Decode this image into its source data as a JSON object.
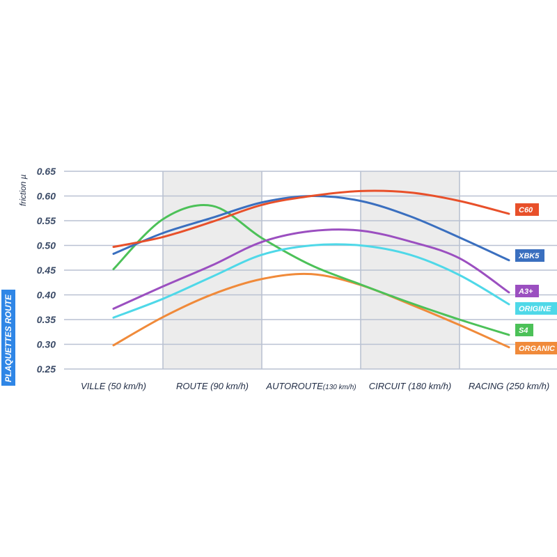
{
  "chart_data": {
    "type": "line",
    "ylabel": "friction µ",
    "side_label": "PLAQUETTES ROUTE",
    "categories": [
      "VILLE (50 km/h)",
      "ROUTE (90 km/h)",
      "AUTOROUTE",
      "CIRCUIT (180 km/h)",
      "RACING (250 km/h)"
    ],
    "category_suffix": {
      "2": "(130 km/h)"
    },
    "ylim": [
      0.25,
      0.65
    ],
    "yticks": [
      "0.65",
      "0.60",
      "0.55",
      "0.50",
      "0.45",
      "0.40",
      "0.35",
      "0.30",
      "0.25"
    ],
    "shaded_bands": [
      "ROUTE (90 km/h)",
      "CIRCUIT (180 km/h)"
    ],
    "grid": true,
    "x": [
      0,
      0.5,
      1,
      1.5,
      2,
      2.5,
      3,
      3.5,
      4
    ],
    "series": [
      {
        "name": "C60",
        "color": "#e8502a",
        "values": [
          0.497,
          0.517,
          0.548,
          0.582,
          0.6,
          0.61,
          0.607,
          0.59,
          0.564
        ]
      },
      {
        "name": "XBK5",
        "color": "#3a6fbf",
        "values": [
          0.483,
          0.525,
          0.556,
          0.587,
          0.6,
          0.59,
          0.559,
          0.516,
          0.47
        ]
      },
      {
        "name": "A3+",
        "color": "#9b4fc0",
        "values": [
          0.372,
          0.417,
          0.46,
          0.507,
          0.529,
          0.53,
          0.508,
          0.474,
          0.405
        ]
      },
      {
        "name": "ORIGINE",
        "color": "#4fd8e8",
        "values": [
          0.354,
          0.392,
          0.437,
          0.481,
          0.5,
          0.5,
          0.481,
          0.44,
          0.381
        ]
      },
      {
        "name": "S4",
        "color": "#4cc158",
        "values": [
          0.452,
          0.553,
          0.58,
          0.515,
          0.46,
          0.421,
          0.384,
          0.35,
          0.319
        ]
      },
      {
        "name": "ORGANIC",
        "color": "#f08a3a",
        "values": [
          0.298,
          0.355,
          0.401,
          0.432,
          0.442,
          0.42,
          0.381,
          0.339,
          0.294
        ]
      }
    ]
  }
}
